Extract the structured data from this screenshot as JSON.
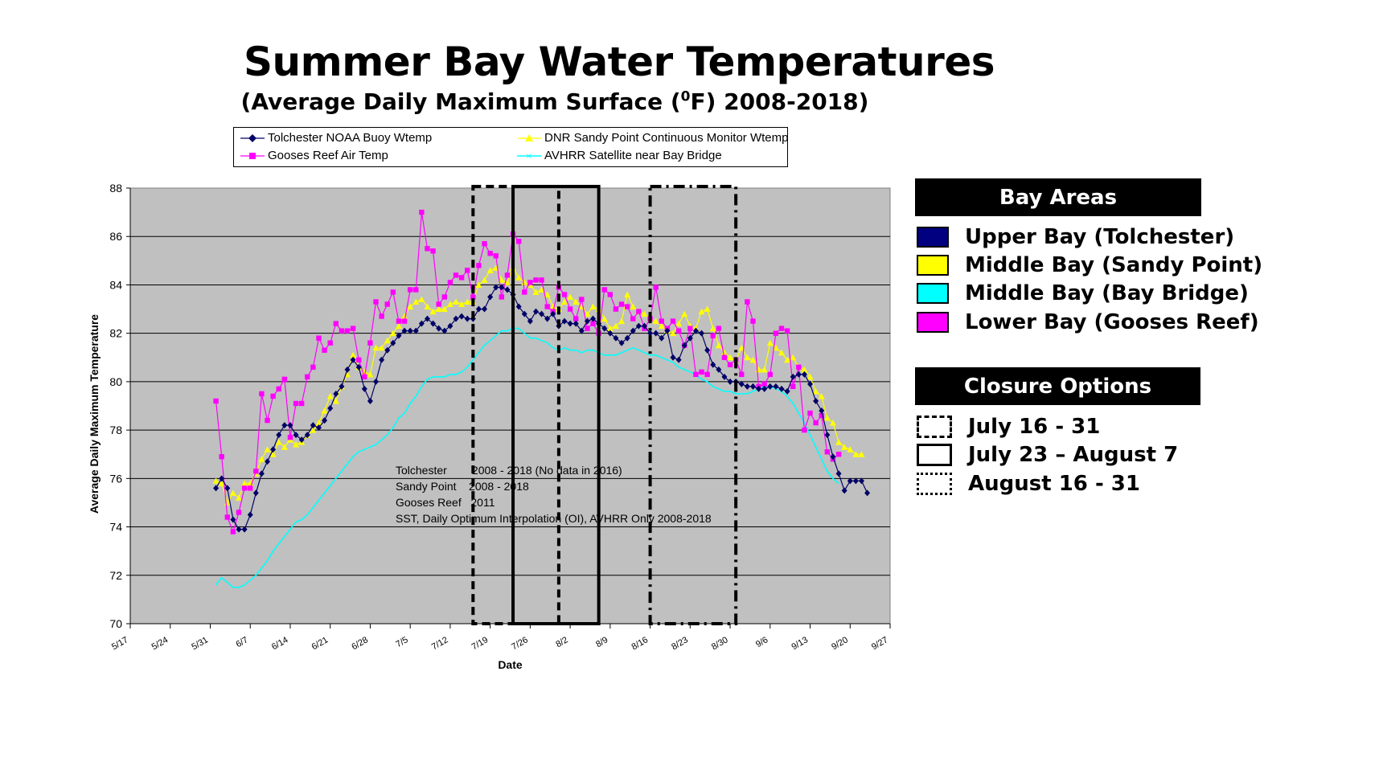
{
  "title": "Summer Bay Water Temperatures",
  "subtitle_main": "(Average Daily Maximum Surface (",
  "subtitle_sup": "0",
  "subtitle_end": "F) 2008-2018)",
  "legend": [
    {
      "label": "Tolchester NOAA Buoy Wtemp",
      "color": "#000066",
      "marker": "diamond"
    },
    {
      "label": "DNR Sandy Point Continuous Monitor Wtemp",
      "color": "#ffff00",
      "marker": "triangle"
    },
    {
      "label": "Gooses Reef Air Temp",
      "color": "#ff00ff",
      "marker": "square"
    },
    {
      "label": "AVHRR Satellite near Bay Bridge",
      "color": "#00ffff",
      "marker": "line"
    }
  ],
  "notes": [
    "Tolchester        2008 - 2018 (No data in 2016)",
    "Sandy Point    2008 - 2018",
    "Gooses Reef   2011",
    "SST, Daily Optimum Interpolation (OI), AVHRR Only 2008-2018"
  ],
  "bay_areas": {
    "header": "Bay Areas",
    "items": [
      {
        "label": "Upper Bay (Tolchester)",
        "color": "#000080"
      },
      {
        "label": "Middle Bay (Sandy Point)",
        "color": "#ffff00"
      },
      {
        "label": "Middle Bay (Bay Bridge)",
        "color": "#00ffff"
      },
      {
        "label": "Lower Bay (Gooses Reef)",
        "color": "#ff00ff"
      }
    ]
  },
  "closure_options": {
    "header": "Closure Options",
    "items": [
      {
        "label": "July 16 - 31",
        "style": "dashed"
      },
      {
        "label": "July 23 – August 7",
        "style": "solid"
      },
      {
        "label": "August 16 - 31",
        "style": "dashdot"
      }
    ]
  },
  "chart_data": {
    "type": "line",
    "title": "",
    "xlabel": "Date",
    "ylabel": "Average Daily Maximum Temperature",
    "x_axis": "day of year (May 17 = 0)",
    "xlim": [
      0,
      133
    ],
    "ylim": [
      70,
      88
    ],
    "y_ticks": [
      70,
      72,
      74,
      76,
      78,
      80,
      82,
      84,
      86,
      88
    ],
    "x_ticks": [
      "5/17",
      "5/24",
      "5/31",
      "6/7",
      "6/14",
      "6/21",
      "6/28",
      "7/5",
      "7/12",
      "7/19",
      "7/26",
      "8/2",
      "8/9",
      "8/16",
      "8/23",
      "8/30",
      "9/6",
      "9/13",
      "9/20",
      "9/27"
    ],
    "grid": true,
    "background": "#c0c0c0",
    "closure_windows": [
      {
        "label": "July 16 - 31",
        "start": "7/16",
        "end": "7/31",
        "style": "dashed"
      },
      {
        "label": "July 23 – August 7",
        "start": "7/23",
        "end": "8/7",
        "style": "solid"
      },
      {
        "label": "August 16 - 31",
        "start": "8/16",
        "end": "8/31",
        "style": "dashdot"
      }
    ],
    "series": [
      {
        "name": "Tolchester NOAA Buoy Wtemp",
        "color": "#000066",
        "marker": "diamond",
        "start": "6/1",
        "values": [
          75.6,
          76.0,
          75.6,
          74.3,
          73.9,
          73.9,
          74.5,
          75.4,
          76.2,
          76.7,
          77.2,
          77.8,
          78.2,
          78.2,
          77.8,
          77.6,
          77.8,
          78.2,
          78.1,
          78.4,
          78.9,
          79.5,
          79.8,
          80.5,
          80.9,
          80.6,
          79.7,
          79.2,
          80.0,
          80.9,
          81.3,
          81.6,
          81.9,
          82.1,
          82.1,
          82.1,
          82.4,
          82.6,
          82.4,
          82.2,
          82.1,
          82.3,
          82.6,
          82.7,
          82.6,
          82.6,
          83.0,
          83.0,
          83.5,
          83.9,
          83.9,
          83.8,
          83.6,
          83.1,
          82.8,
          82.5,
          82.9,
          82.8,
          82.6,
          82.8,
          82.3,
          82.5,
          82.4,
          82.4,
          82.1,
          82.5,
          82.6,
          82.4,
          82.2,
          82.0,
          81.8,
          81.6,
          81.8,
          82.1,
          82.3,
          82.3,
          82.0,
          82.0,
          81.8,
          82.1,
          81.0,
          80.9,
          81.5,
          81.8,
          82.1,
          82.0,
          81.3,
          80.7,
          80.5,
          80.2,
          80.0,
          80.0,
          79.9,
          79.8,
          79.8,
          79.7,
          79.7,
          79.8,
          79.8,
          79.7,
          79.6,
          80.2,
          80.3,
          80.3,
          79.9,
          79.2,
          78.8,
          77.8,
          76.9,
          76.2,
          75.5,
          75.9,
          75.9,
          75.9,
          75.4
        ]
      },
      {
        "name": "DNR Sandy Point Continuous Monitor Wtemp",
        "color": "#ffff00",
        "marker": "triangle",
        "start": "6/1",
        "values": [
          75.9,
          75.8,
          75.0,
          75.4,
          75.2,
          75.8,
          75.8,
          76.2,
          76.8,
          77.2,
          77.0,
          77.5,
          77.3,
          77.6,
          77.4,
          77.5,
          77.8,
          78.0,
          78.3,
          78.8,
          79.4,
          79.2,
          79.8,
          80.3,
          81.1,
          80.6,
          80.4,
          80.3,
          81.4,
          81.4,
          81.7,
          82.0,
          82.3,
          82.7,
          83.1,
          83.3,
          83.4,
          83.1,
          82.9,
          83.0,
          83.0,
          83.2,
          83.3,
          83.2,
          83.3,
          83.3,
          84.0,
          84.2,
          84.6,
          84.7,
          84.2,
          84.1,
          84.7,
          84.3,
          84.1,
          84.0,
          83.7,
          83.8,
          83.6,
          83.1,
          83.0,
          83.3,
          83.5,
          83.3,
          83.1,
          82.8,
          83.1,
          83.0,
          82.6,
          82.2,
          82.3,
          82.5,
          83.6,
          83.1,
          82.9,
          82.8,
          82.6,
          82.5,
          82.3,
          82.1,
          82.0,
          82.4,
          82.8,
          82.3,
          82.2,
          82.9,
          83.0,
          82.2,
          81.5,
          81.2,
          81.0,
          80.9,
          81.4,
          81.0,
          80.9,
          80.5,
          80.5,
          81.6,
          81.4,
          81.2,
          80.9,
          81.0,
          80.6,
          80.5,
          80.2,
          79.6,
          79.4,
          78.5,
          78.3,
          77.5,
          77.3,
          77.2,
          77.0,
          77.0
        ]
      },
      {
        "name": "Gooses Reef Air Temp",
        "color": "#ff00ff",
        "marker": "square",
        "start": "6/1",
        "values": [
          79.2,
          76.9,
          74.4,
          73.8,
          74.6,
          75.6,
          75.6,
          76.3,
          79.5,
          78.4,
          79.4,
          79.7,
          80.1,
          77.7,
          79.1,
          79.1,
          80.2,
          80.6,
          81.8,
          81.3,
          81.6,
          82.4,
          82.1,
          82.1,
          82.2,
          80.9,
          80.2,
          81.6,
          83.3,
          82.7,
          83.2,
          83.7,
          82.5,
          82.5,
          83.8,
          83.8,
          87.0,
          85.5,
          85.4,
          83.2,
          83.5,
          84.1,
          84.4,
          84.3,
          84.6,
          83.5,
          84.8,
          85.7,
          85.3,
          85.2,
          83.5,
          84.4,
          86.1,
          85.8,
          83.7,
          84.1,
          84.2,
          84.2,
          83.1,
          82.9,
          83.9,
          83.6,
          83.0,
          82.6,
          83.4,
          82.2,
          82.4,
          82.0,
          83.8,
          83.6,
          83.0,
          83.2,
          83.1,
          82.6,
          82.9,
          82.2,
          82.6,
          83.9,
          82.5,
          82.2,
          82.5,
          82.1,
          81.5,
          82.2,
          80.3,
          80.4,
          80.3,
          81.9,
          82.2,
          81.0,
          80.7,
          80.9,
          80.3,
          83.3,
          82.5,
          79.8,
          79.9,
          80.3,
          82.0,
          82.2,
          82.1,
          79.8,
          80.6,
          78.0,
          78.7,
          78.3,
          78.6,
          77.1,
          76.8,
          77.0
        ]
      },
      {
        "name": "AVHRR Satellite near Bay Bridge",
        "color": "#00ffff",
        "marker": "line",
        "start": "6/1",
        "values": [
          71.6,
          71.9,
          71.7,
          71.5,
          71.5,
          71.6,
          71.8,
          72.0,
          72.3,
          72.6,
          73.0,
          73.3,
          73.6,
          73.9,
          74.2,
          74.3,
          74.5,
          74.8,
          75.1,
          75.4,
          75.7,
          76.0,
          76.3,
          76.6,
          76.9,
          77.1,
          77.2,
          77.3,
          77.4,
          77.6,
          77.8,
          78.1,
          78.5,
          78.7,
          79.1,
          79.4,
          79.8,
          80.1,
          80.2,
          80.2,
          80.2,
          80.3,
          80.3,
          80.4,
          80.6,
          80.9,
          81.2,
          81.5,
          81.7,
          81.9,
          82.1,
          82.1,
          82.2,
          82.2,
          82.0,
          81.8,
          81.8,
          81.7,
          81.6,
          81.4,
          81.3,
          81.4,
          81.3,
          81.3,
          81.2,
          81.3,
          81.3,
          81.2,
          81.1,
          81.1,
          81.1,
          81.2,
          81.3,
          81.4,
          81.3,
          81.2,
          81.1,
          81.1,
          81.0,
          80.9,
          80.8,
          80.6,
          80.5,
          80.4,
          80.3,
          80.1,
          80.0,
          79.8,
          79.7,
          79.6,
          79.6,
          79.5,
          79.5,
          79.5,
          79.6,
          79.7,
          79.8,
          79.8,
          79.7,
          79.6,
          79.4,
          79.1,
          78.7,
          78.3,
          77.8,
          77.3,
          76.8,
          76.3,
          76.0,
          75.8
        ]
      }
    ]
  }
}
